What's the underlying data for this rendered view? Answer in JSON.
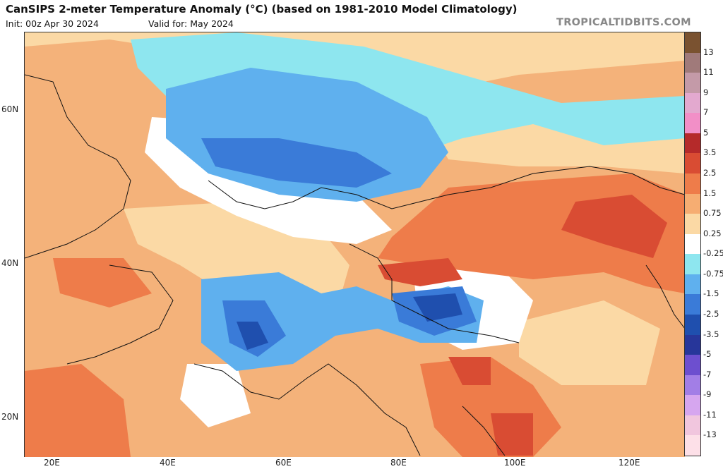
{
  "header": {
    "title": "CanSIPS 2-meter Temperature Anomaly (°C) (based on 1981-2010 Model Climatology)",
    "init": "Init: 00z Apr 30 2024",
    "valid": "Valid for: May 2024",
    "brand": "TROPICALTIDBITS.COM"
  },
  "axes": {
    "lat_labels": [
      "60N",
      "40N",
      "20N"
    ],
    "lon_labels": [
      "20E",
      "40E",
      "60E",
      "80E",
      "100E",
      "120E"
    ]
  },
  "colorbar": {
    "labels": [
      "13",
      "11",
      "9",
      "7",
      "5",
      "3.5",
      "2.5",
      "1.5",
      "0.75",
      "0.25",
      "-0.25",
      "-0.75",
      "-1.5",
      "-2.5",
      "-3.5",
      "-5",
      "-7",
      "-9",
      "-11",
      "-13"
    ],
    "colors": [
      "#7a5230",
      "#a07a7a",
      "#c49aa8",
      "#e3a9cf",
      "#f28fc7",
      "#b52a2a",
      "#d94c33",
      "#ee7c4a",
      "#f6ad72",
      "#fbd9a5",
      "#ffffff",
      "#8ee6ef",
      "#5fb0ee",
      "#3a7bd8",
      "#1f4fae",
      "#27369a",
      "#6d4fcf",
      "#a27ee6",
      "#d6a6ef",
      "#f1c6de",
      "#fde0e8"
    ]
  },
  "map_colors": {
    "warm_light": "#fbd9a5",
    "warm": "#f4b27a",
    "warm_strong": "#ee7c4a",
    "hot": "#d94c33",
    "neutral": "#ffffff",
    "cool_light": "#8ee6ef",
    "cool": "#5fb0ee",
    "cool_strong": "#3a7bd8",
    "cold": "#1f4fae"
  }
}
